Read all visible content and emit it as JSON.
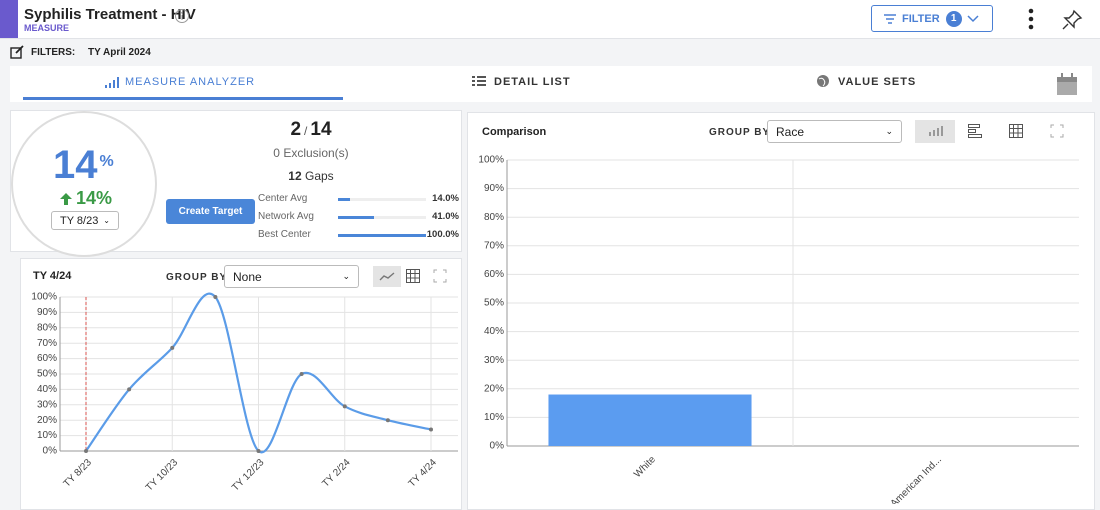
{
  "header": {
    "title": "Syphilis Treatment - HIV",
    "subtitle": "MEASURE",
    "filter_button": "FILTER",
    "filter_count": 1
  },
  "filters": {
    "label": "FILTERS:",
    "value": "TY April 2024"
  },
  "tabs": [
    "MEASURE ANALYZER",
    "DETAIL LIST",
    "VALUE SETS"
  ],
  "summary": {
    "score": "14",
    "score_unit": "%",
    "change": "14%",
    "period": "TY 8/23",
    "numerator": "2",
    "separator": "/",
    "denominator": "14",
    "exclusions": "0",
    "exclusions_label": "Exclusion(s)",
    "gaps": "12",
    "gaps_label": "Gaps",
    "create_target": "Create Target",
    "benchmarks": [
      {
        "name": "Center Avg",
        "value": 14.0,
        "label": "14.0%"
      },
      {
        "name": "Network Avg",
        "value": 41.0,
        "label": "41.0%"
      },
      {
        "name": "Best Center",
        "value": 100.0,
        "label": "100.0%"
      }
    ]
  },
  "trend": {
    "group_by_label": "GROUP BY",
    "group_by": "None",
    "chart_data": {
      "type": "line",
      "title": "TY 4/24",
      "categories": [
        "TY 8/23",
        null,
        "TY 10/23",
        null,
        "TY 12/23",
        null,
        "TY 2/24",
        null,
        "TY 4/24"
      ],
      "values": [
        0,
        40,
        67,
        100,
        0,
        50,
        29,
        20,
        14
      ],
      "color": "#5b9ce8",
      "ylim": [
        0,
        100
      ],
      "yticks": [
        {
          "value": 0,
          "label": "0%"
        },
        {
          "value": 10,
          "label": "10%"
        },
        {
          "value": 20,
          "label": "20%"
        },
        {
          "value": 30,
          "label": "30%"
        },
        {
          "value": 40,
          "label": "40%"
        },
        {
          "value": 50,
          "label": "50%"
        },
        {
          "value": 60,
          "label": "60%"
        },
        {
          "value": 70,
          "label": "70%"
        },
        {
          "value": 80,
          "label": "80%"
        },
        {
          "value": 90,
          "label": "90%"
        },
        {
          "value": 100,
          "label": "100%"
        }
      ],
      "grid": true
    }
  },
  "comparison": {
    "group_by_label": "GROUP BY",
    "group_by": "Race",
    "chart_data": {
      "type": "bar",
      "title": "Comparison",
      "categories": [
        "White",
        "American Ind..."
      ],
      "values": [
        18,
        0
      ],
      "color": "#5b9cf0",
      "ylim": [
        0,
        100
      ],
      "yticks": [
        {
          "value": 0,
          "label": "0%"
        },
        {
          "value": 10,
          "label": "10%"
        },
        {
          "value": 20,
          "label": "20%"
        },
        {
          "value": 30,
          "label": "30%"
        },
        {
          "value": 40,
          "label": "40%"
        },
        {
          "value": 50,
          "label": "50%"
        },
        {
          "value": 60,
          "label": "60%"
        },
        {
          "value": 70,
          "label": "70%"
        },
        {
          "value": 80,
          "label": "80%"
        },
        {
          "value": 90,
          "label": "90%"
        },
        {
          "value": 100,
          "label": "100%"
        }
      ],
      "grid": true
    }
  }
}
